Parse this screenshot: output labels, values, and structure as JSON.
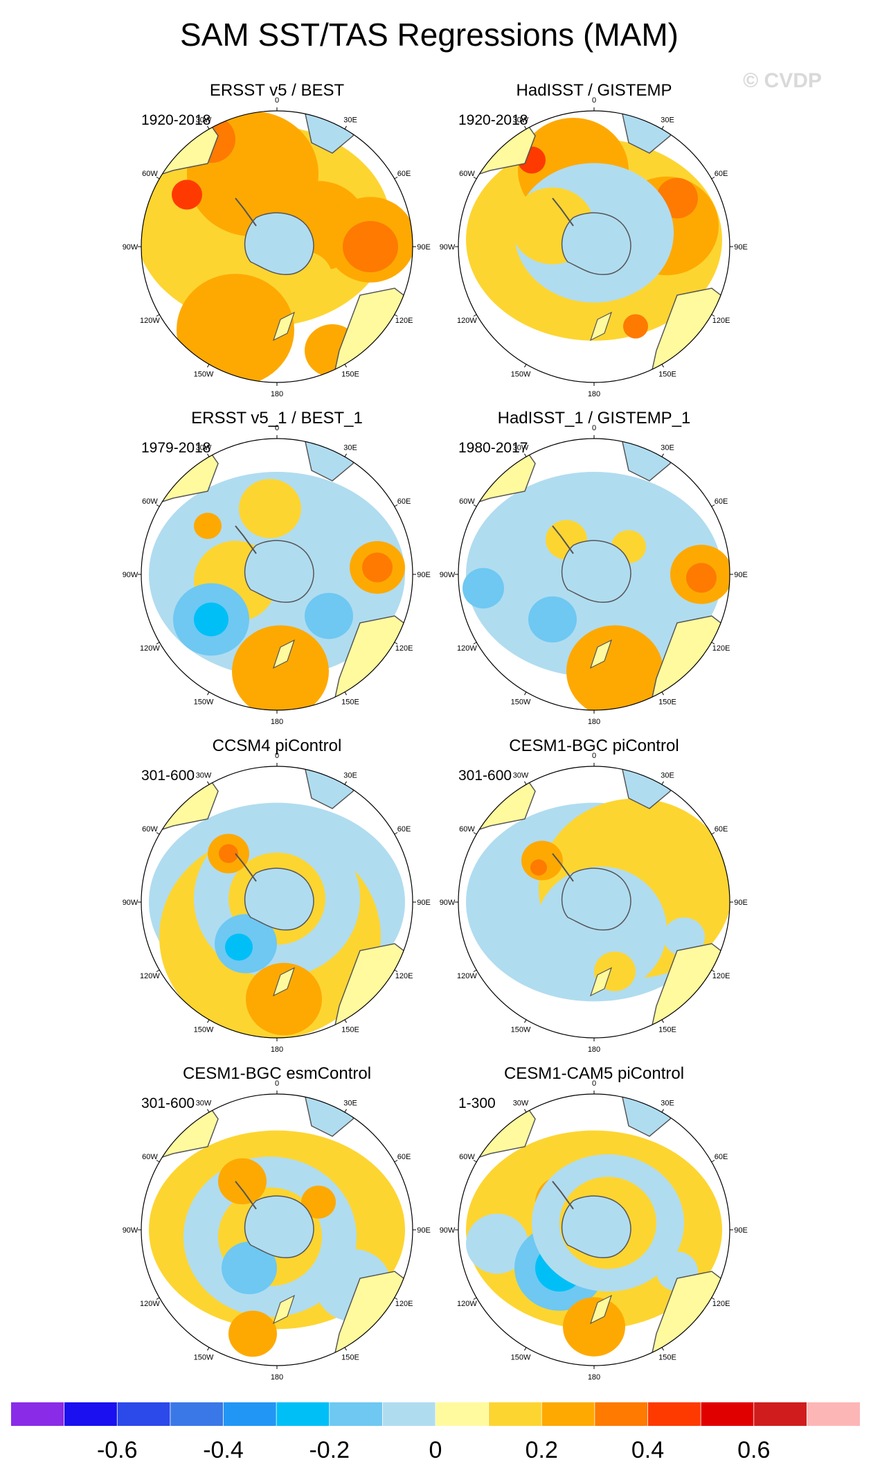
{
  "figure": {
    "title": "SAM SST/TAS Regressions (MAM)",
    "watermark": "© CVDP"
  },
  "chart_data": {
    "type": "heatmap",
    "projection": "south-polar-stereographic",
    "title": "SAM SST/TAS Regressions (MAM)",
    "longitude_labels": [
      "0",
      "30E",
      "60E",
      "90E",
      "120E",
      "150E",
      "180",
      "150W",
      "120W",
      "90W",
      "60W",
      "30W"
    ],
    "colorbar": {
      "levels": [
        -0.7,
        -0.6,
        -0.5,
        -0.4,
        -0.3,
        -0.2,
        -0.1,
        0,
        0.1,
        0.2,
        0.3,
        0.4,
        0.5,
        0.6,
        0.7
      ],
      "tick_labels": [
        "-0.6",
        "-0.4",
        "-0.2",
        "0",
        "0.2",
        "0.4",
        "0.6"
      ],
      "tick_values": [
        -0.6,
        -0.4,
        -0.2,
        0,
        0.2,
        0.4,
        0.6
      ],
      "colors": [
        "#8a2be8",
        "#1a10f0",
        "#2c49ea",
        "#3a78e8",
        "#2196f4",
        "#00bff7",
        "#6ec8f2",
        "#b0dcf0",
        "#fffa9e",
        "#fdd531",
        "#fea902",
        "#fe7a00",
        "#fe3a00",
        "#e00000",
        "#d01c1c",
        "#fdb6b6"
      ]
    },
    "panels": [
      {
        "title": "ERSST v5 / BEST",
        "period": "1920-2018",
        "dominant_sign": "positive",
        "peak_value": 0.4
      },
      {
        "title": "HadISST / GISTEMP",
        "period": "1920-2018",
        "dominant_sign": "positive",
        "peak_value": 0.4
      },
      {
        "title": "ERSST v5_1 / BEST_1",
        "period": "1979-2018",
        "dominant_sign": "mixed",
        "peak_value": 0.3
      },
      {
        "title": "HadISST_1 / GISTEMP_1",
        "period": "1980-2017",
        "dominant_sign": "mixed",
        "peak_value": 0.3
      },
      {
        "title": "CCSM4 piControl",
        "period": "301-600",
        "dominant_sign": "mixed",
        "peak_value": 0.3
      },
      {
        "title": "CESM1-BGC piControl",
        "period": "301-600",
        "dominant_sign": "mixed",
        "peak_value": 0.3
      },
      {
        "title": "CESM1-BGC esmControl",
        "period": "301-600",
        "dominant_sign": "mixed",
        "peak_value": 0.2
      },
      {
        "title": "CESM1-CAM5 piControl",
        "period": "1-300",
        "dominant_sign": "mixed",
        "peak_value": 0.2
      }
    ]
  }
}
